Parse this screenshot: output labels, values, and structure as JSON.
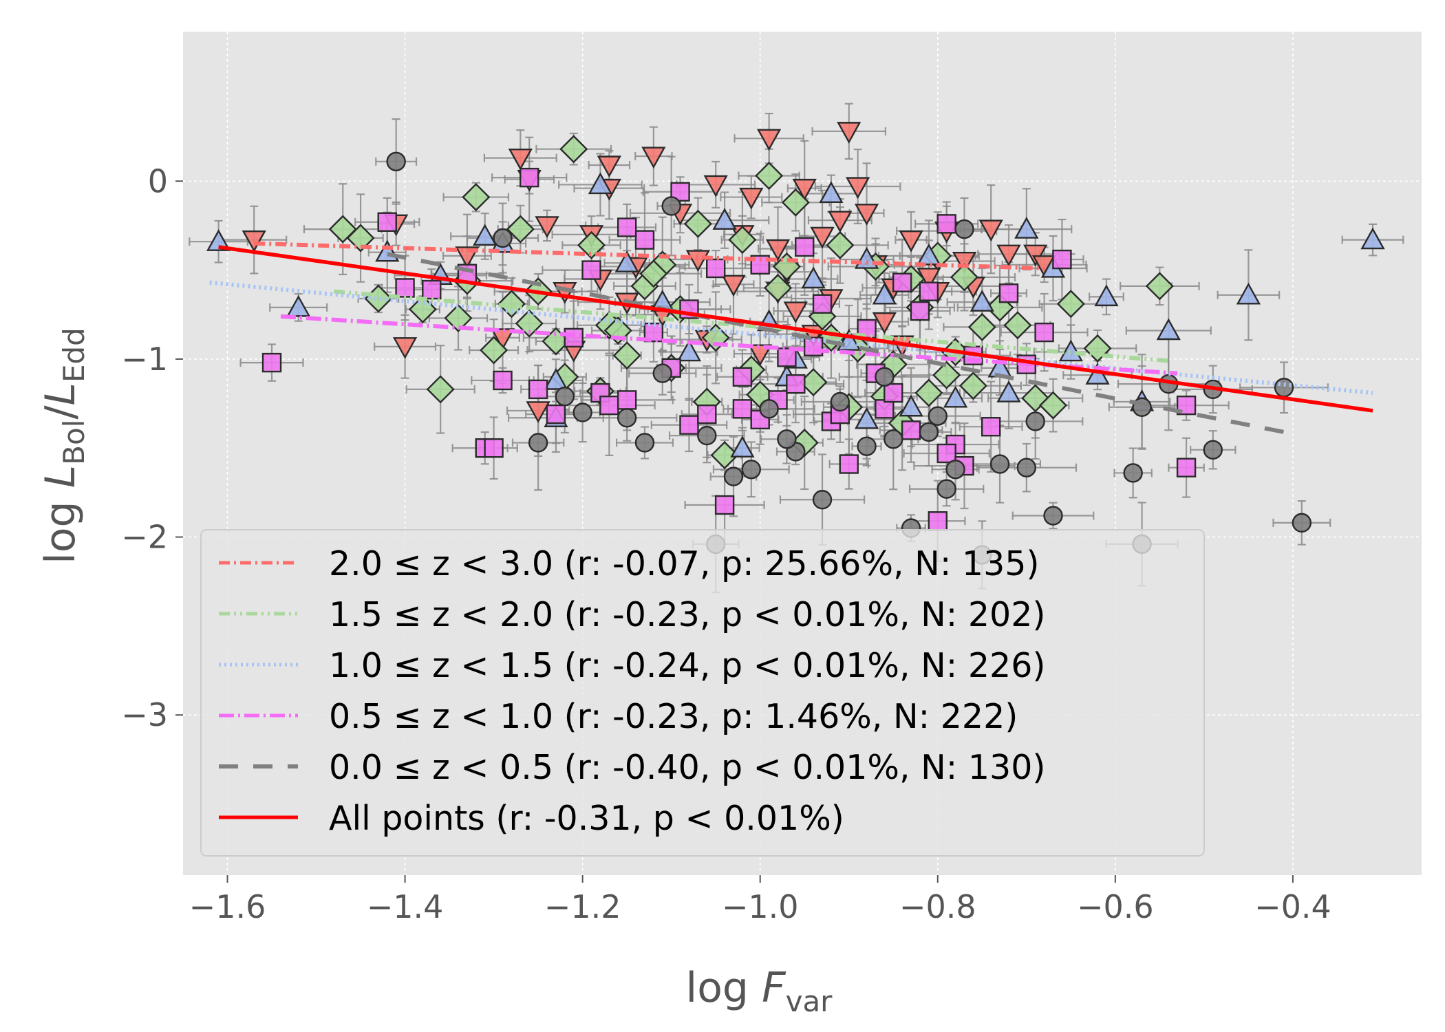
{
  "chart_data": {
    "type": "scatter",
    "title": "",
    "xlabel": {
      "base": "log ",
      "var": "F",
      "sub": "var"
    },
    "ylabel": {
      "base": "log ",
      "num": "L",
      "num_sub": "Bol",
      "slash": "/",
      "den": "L",
      "den_sub": "Edd"
    },
    "xlim": [
      -1.65,
      -0.255
    ],
    "ylim": [
      -3.9,
      0.84
    ],
    "x_ticks": [
      -1.6,
      -1.4,
      -1.2,
      -1.0,
      -0.8,
      -0.6,
      -0.4
    ],
    "x_tick_labels": [
      "−1.6",
      "−1.4",
      "−1.2",
      "−1.0",
      "−0.8",
      "−0.6",
      "−0.4"
    ],
    "y_ticks": [
      0,
      -1,
      -2,
      -3
    ],
    "y_tick_labels": [
      "0",
      "−1",
      "−2",
      "−3"
    ],
    "grid": true,
    "legend_position": "lower-left",
    "colors": {
      "background": "#e5e5e5",
      "grid": "#ffffff",
      "z20_30": "#f47a72",
      "z15_20": "#a8d89a",
      "z10_15": "#9fb5ea",
      "z05_10": "#ee78f0",
      "z00_05": "#808080",
      "all": "#ff0000"
    },
    "fit_lines": [
      {
        "name": "2.0 ≤ z < 3.0 (r: -0.07, p: 25.66%, N: 135)",
        "style": "dashdot",
        "color": "#fd6b6b",
        "x": [
          -1.57,
          -0.68
        ],
        "y": [
          -0.35,
          -0.49
        ]
      },
      {
        "name": "1.5 ≤ z < 2.0 (r: -0.23, p < 0.01%, N: 202)",
        "style": "dashdot",
        "color": "#a8d89a",
        "x": [
          -1.48,
          -0.54
        ],
        "y": [
          -0.62,
          -1.01
        ]
      },
      {
        "name": "1.0 ≤ z < 1.5 (r: -0.24, p < 0.01%, N: 226)",
        "style": "dotted",
        "color": "#a8c4f5",
        "x": [
          -1.62,
          -0.31
        ],
        "y": [
          -0.57,
          -1.19
        ]
      },
      {
        "name": "0.5 ≤ z < 1.0 (r: -0.23, p: 1.46%, N: 222)",
        "style": "dashdot",
        "color": "#f46df7",
        "x": [
          -1.54,
          -0.53
        ],
        "y": [
          -0.76,
          -1.08
        ]
      },
      {
        "name": "0.0 ≤ z < 0.5 (r: -0.40, p < 0.01%, N: 130)",
        "style": "dashed",
        "color": "#808080",
        "x": [
          -1.42,
          -0.41
        ],
        "y": [
          -0.41,
          -1.41
        ]
      },
      {
        "name": "All points (r: -0.31, p < 0.01%)",
        "style": "solid",
        "color": "#ff0000",
        "x": [
          -1.61,
          -0.31
        ],
        "y": [
          -0.37,
          -1.29
        ]
      }
    ],
    "series": [
      {
        "name": "2.0 ≤ z < 3.0",
        "marker": "triangle-down",
        "color": "#f47a72",
        "points": [
          [
            -1.57,
            -0.33
          ],
          [
            -1.41,
            -0.24
          ],
          [
            -1.4,
            -0.93
          ],
          [
            -1.29,
            -0.88
          ],
          [
            -1.27,
            0.13
          ],
          [
            -1.26,
            0.01
          ],
          [
            -1.24,
            -0.25
          ],
          [
            -1.22,
            -0.62
          ],
          [
            -1.19,
            -0.3
          ],
          [
            -1.17,
            -0.04
          ],
          [
            -1.17,
            0.09
          ],
          [
            -1.14,
            -0.48
          ],
          [
            -1.12,
            0.14
          ],
          [
            -1.09,
            -0.18
          ],
          [
            -1.07,
            -0.44
          ],
          [
            -1.05,
            -0.02
          ],
          [
            -1.03,
            -0.58
          ],
          [
            -1.01,
            -0.09
          ],
          [
            -0.99,
            0.24
          ],
          [
            -0.98,
            -0.38
          ],
          [
            -0.97,
            -0.51
          ],
          [
            -0.95,
            -0.04
          ],
          [
            -0.93,
            -0.31
          ],
          [
            -0.91,
            -0.22
          ],
          [
            -0.9,
            0.28
          ],
          [
            -0.89,
            -0.03
          ],
          [
            -0.87,
            -0.47
          ],
          [
            -0.85,
            -0.6
          ],
          [
            -0.83,
            -0.33
          ],
          [
            -0.81,
            -0.54
          ],
          [
            -0.79,
            -0.28
          ],
          [
            -0.77,
            -0.45
          ],
          [
            -0.74,
            -0.27
          ],
          [
            -0.72,
            -0.41
          ],
          [
            -0.69,
            -0.41
          ],
          [
            -0.68,
            -0.47
          ],
          [
            -1.33,
            -0.42
          ],
          [
            -1.21,
            -0.95
          ],
          [
            -1.15,
            -0.68
          ],
          [
            -1.11,
            -0.75
          ],
          [
            -1.06,
            -0.89
          ],
          [
            -1.0,
            -0.97
          ],
          [
            -0.96,
            -0.73
          ],
          [
            -0.92,
            -0.66
          ],
          [
            -0.86,
            -0.79
          ],
          [
            -0.8,
            -0.62
          ],
          [
            -0.76,
            -0.59
          ],
          [
            -0.88,
            -0.18
          ],
          [
            -1.25,
            -1.29
          ],
          [
            -1.18,
            -0.55
          ],
          [
            -1.02,
            -0.3
          ],
          [
            -0.94,
            -0.86
          ],
          [
            -0.84,
            -0.92
          ],
          [
            -0.98,
            -0.62
          ]
        ]
      },
      {
        "name": "1.5 ≤ z < 2.0",
        "marker": "diamond",
        "color": "#a8d89a",
        "points": [
          [
            -1.47,
            -0.27
          ],
          [
            -1.45,
            -0.32
          ],
          [
            -1.43,
            -0.66
          ],
          [
            -1.38,
            -0.72
          ],
          [
            -1.36,
            -1.17
          ],
          [
            -1.33,
            -0.56
          ],
          [
            -1.32,
            -0.09
          ],
          [
            -1.3,
            -0.95
          ],
          [
            -1.28,
            -0.69
          ],
          [
            -1.27,
            -0.27
          ],
          [
            -1.25,
            -0.62
          ],
          [
            -1.23,
            -0.9
          ],
          [
            -1.21,
            0.18
          ],
          [
            -1.19,
            -0.36
          ],
          [
            -1.17,
            -0.81
          ],
          [
            -1.15,
            -0.98
          ],
          [
            -1.13,
            -0.59
          ],
          [
            -1.11,
            -0.47
          ],
          [
            -1.09,
            -0.72
          ],
          [
            -1.07,
            -0.24
          ],
          [
            -1.05,
            -0.88
          ],
          [
            -1.04,
            -1.54
          ],
          [
            -1.02,
            -0.33
          ],
          [
            -1.01,
            -1.06
          ],
          [
            -0.99,
            0.03
          ],
          [
            -0.98,
            -0.6
          ],
          [
            -0.96,
            -0.12
          ],
          [
            -0.95,
            -1.47
          ],
          [
            -0.93,
            -0.76
          ],
          [
            -0.91,
            -0.36
          ],
          [
            -0.89,
            -0.94
          ],
          [
            -0.87,
            -0.48
          ],
          [
            -0.86,
            -1.21
          ],
          [
            -0.84,
            -1.36
          ],
          [
            -0.82,
            -0.71
          ],
          [
            -0.8,
            -0.42
          ],
          [
            -0.78,
            -0.96
          ],
          [
            -0.77,
            -0.54
          ],
          [
            -0.75,
            -0.82
          ],
          [
            -0.73,
            -0.71
          ],
          [
            -0.71,
            -0.81
          ],
          [
            -0.69,
            -1.22
          ],
          [
            -0.67,
            -1.26
          ],
          [
            -0.65,
            -0.69
          ],
          [
            -0.62,
            -0.94
          ],
          [
            -0.55,
            -0.59
          ],
          [
            -1.22,
            -1.1
          ],
          [
            -1.18,
            -1.18
          ],
          [
            -1.1,
            -1.05
          ],
          [
            -1.06,
            -1.24
          ],
          [
            -1.0,
            -1.2
          ],
          [
            -0.94,
            -1.13
          ],
          [
            -0.9,
            -1.27
          ],
          [
            -0.85,
            -1.03
          ],
          [
            -0.79,
            -1.09
          ],
          [
            -1.26,
            -0.8
          ],
          [
            -1.12,
            -0.52
          ],
          [
            -0.97,
            -0.48
          ],
          [
            -0.83,
            -0.55
          ],
          [
            -1.34,
            -0.77
          ],
          [
            -1.16,
            -0.84
          ],
          [
            -0.92,
            -0.88
          ],
          [
            -0.81,
            -1.19
          ],
          [
            -0.76,
            -1.15
          ]
        ]
      },
      {
        "name": "1.0 ≤ z < 1.5",
        "marker": "triangle-up",
        "color": "#9fb5ea",
        "points": [
          [
            -1.61,
            -0.34
          ],
          [
            -1.52,
            -0.71
          ],
          [
            -1.42,
            -0.4
          ],
          [
            -1.36,
            -0.53
          ],
          [
            -1.31,
            -0.31
          ],
          [
            -1.23,
            -1.12
          ],
          [
            -1.18,
            -0.02
          ],
          [
            -1.15,
            -0.46
          ],
          [
            -1.11,
            -0.68
          ],
          [
            -1.08,
            -0.96
          ],
          [
            -1.04,
            -0.22
          ],
          [
            -1.02,
            -1.5
          ],
          [
            -0.99,
            -0.79
          ],
          [
            -0.97,
            -1.1
          ],
          [
            -0.94,
            -0.55
          ],
          [
            -0.92,
            -0.07
          ],
          [
            -0.9,
            -0.9
          ],
          [
            -0.88,
            -1.34
          ],
          [
            -0.86,
            -0.64
          ],
          [
            -0.83,
            -1.27
          ],
          [
            -0.81,
            -0.42
          ],
          [
            -0.78,
            -1.22
          ],
          [
            -0.75,
            -0.68
          ],
          [
            -0.73,
            -1.05
          ],
          [
            -0.7,
            -0.27
          ],
          [
            -0.67,
            -0.49
          ],
          [
            -0.65,
            -0.96
          ],
          [
            -0.61,
            -0.65
          ],
          [
            -0.57,
            -1.24
          ],
          [
            -0.54,
            -0.84
          ],
          [
            -0.45,
            -0.64
          ],
          [
            -0.31,
            -0.33
          ],
          [
            -1.23,
            -1.33
          ],
          [
            -1.29,
            -0.35
          ],
          [
            -0.96,
            -1.0
          ],
          [
            -0.88,
            -0.44
          ],
          [
            -0.72,
            -1.19
          ],
          [
            -0.62,
            -1.09
          ]
        ]
      },
      {
        "name": "0.5 ≤ z < 1.0",
        "marker": "square",
        "color": "#ee78f0",
        "points": [
          [
            -1.55,
            -1.02
          ],
          [
            -1.42,
            -0.23
          ],
          [
            -1.4,
            -0.6
          ],
          [
            -1.37,
            -0.61
          ],
          [
            -1.33,
            -0.52
          ],
          [
            -1.31,
            -1.5
          ],
          [
            -1.3,
            -1.5
          ],
          [
            -1.29,
            -1.12
          ],
          [
            -1.26,
            0.02
          ],
          [
            -1.25,
            -1.17
          ],
          [
            -1.23,
            -1.31
          ],
          [
            -1.21,
            -0.88
          ],
          [
            -1.18,
            -1.19
          ],
          [
            -1.17,
            -1.26
          ],
          [
            -1.15,
            -1.23
          ],
          [
            -1.13,
            -0.33
          ],
          [
            -1.1,
            -1.05
          ],
          [
            -1.09,
            -0.06
          ],
          [
            -1.08,
            -1.37
          ],
          [
            -1.06,
            -1.31
          ],
          [
            -1.05,
            -0.49
          ],
          [
            -1.04,
            -1.82
          ],
          [
            -1.02,
            -1.28
          ],
          [
            -1.0,
            -1.34
          ],
          [
            -0.98,
            -1.23
          ],
          [
            -0.97,
            -0.99
          ],
          [
            -0.95,
            -0.37
          ],
          [
            -0.93,
            -0.69
          ],
          [
            -0.92,
            -1.35
          ],
          [
            -0.9,
            -1.59
          ],
          [
            -0.88,
            -0.83
          ],
          [
            -0.86,
            -1.28
          ],
          [
            -0.84,
            -0.57
          ],
          [
            -0.83,
            -1.4
          ],
          [
            -0.81,
            -0.62
          ],
          [
            -0.8,
            -1.91
          ],
          [
            -0.79,
            -0.24
          ],
          [
            -0.78,
            -1.48
          ],
          [
            -0.76,
            -0.98
          ],
          [
            -0.74,
            -1.38
          ],
          [
            -0.72,
            -0.63
          ],
          [
            -0.7,
            -1.03
          ],
          [
            -0.68,
            -0.85
          ],
          [
            -0.66,
            -0.44
          ],
          [
            -0.52,
            -1.61
          ],
          [
            -0.52,
            -1.26
          ],
          [
            -1.15,
            -0.26
          ],
          [
            -1.12,
            -0.85
          ],
          [
            -1.08,
            -0.72
          ],
          [
            -1.0,
            -0.47
          ],
          [
            -0.94,
            -0.93
          ],
          [
            -0.87,
            -1.08
          ],
          [
            -0.82,
            -0.73
          ],
          [
            -0.79,
            -1.53
          ],
          [
            -0.77,
            -1.6
          ],
          [
            -1.19,
            -0.5
          ],
          [
            -1.02,
            -1.1
          ],
          [
            -0.96,
            -1.14
          ],
          [
            -0.91,
            -1.31
          ],
          [
            -0.85,
            -1.19
          ]
        ]
      },
      {
        "name": "0.0 ≤ z < 0.5",
        "marker": "circle",
        "color": "#808080",
        "points": [
          [
            -1.41,
            0.11
          ],
          [
            -1.29,
            -0.32
          ],
          [
            -1.22,
            -1.21
          ],
          [
            -1.2,
            -1.3
          ],
          [
            -1.13,
            -1.47
          ],
          [
            -1.11,
            -1.08
          ],
          [
            -1.1,
            -0.14
          ],
          [
            -1.06,
            -1.43
          ],
          [
            -1.05,
            -2.04
          ],
          [
            -1.03,
            -1.66
          ],
          [
            -1.01,
            -1.62
          ],
          [
            -0.99,
            -1.28
          ],
          [
            -0.96,
            -1.52
          ],
          [
            -0.93,
            -1.79
          ],
          [
            -0.91,
            -1.24
          ],
          [
            -0.88,
            -1.49
          ],
          [
            -0.85,
            -1.45
          ],
          [
            -0.83,
            -1.95
          ],
          [
            -0.81,
            -1.41
          ],
          [
            -0.79,
            -1.73
          ],
          [
            -0.78,
            -1.62
          ],
          [
            -0.77,
            -0.27
          ],
          [
            -0.75,
            -2.1
          ],
          [
            -0.73,
            -1.59
          ],
          [
            -0.7,
            -1.61
          ],
          [
            -0.69,
            -1.35
          ],
          [
            -0.67,
            -1.88
          ],
          [
            -0.58,
            -1.64
          ],
          [
            -0.57,
            -1.27
          ],
          [
            -0.57,
            -2.04
          ],
          [
            -0.54,
            -1.14
          ],
          [
            -0.49,
            -1.51
          ],
          [
            -0.49,
            -1.17
          ],
          [
            -0.41,
            -1.16
          ],
          [
            -0.39,
            -1.92
          ],
          [
            -1.25,
            -1.47
          ],
          [
            -1.15,
            -1.33
          ],
          [
            -0.97,
            -1.45
          ],
          [
            -0.86,
            -1.1
          ],
          [
            -0.8,
            -1.32
          ]
        ]
      }
    ]
  }
}
